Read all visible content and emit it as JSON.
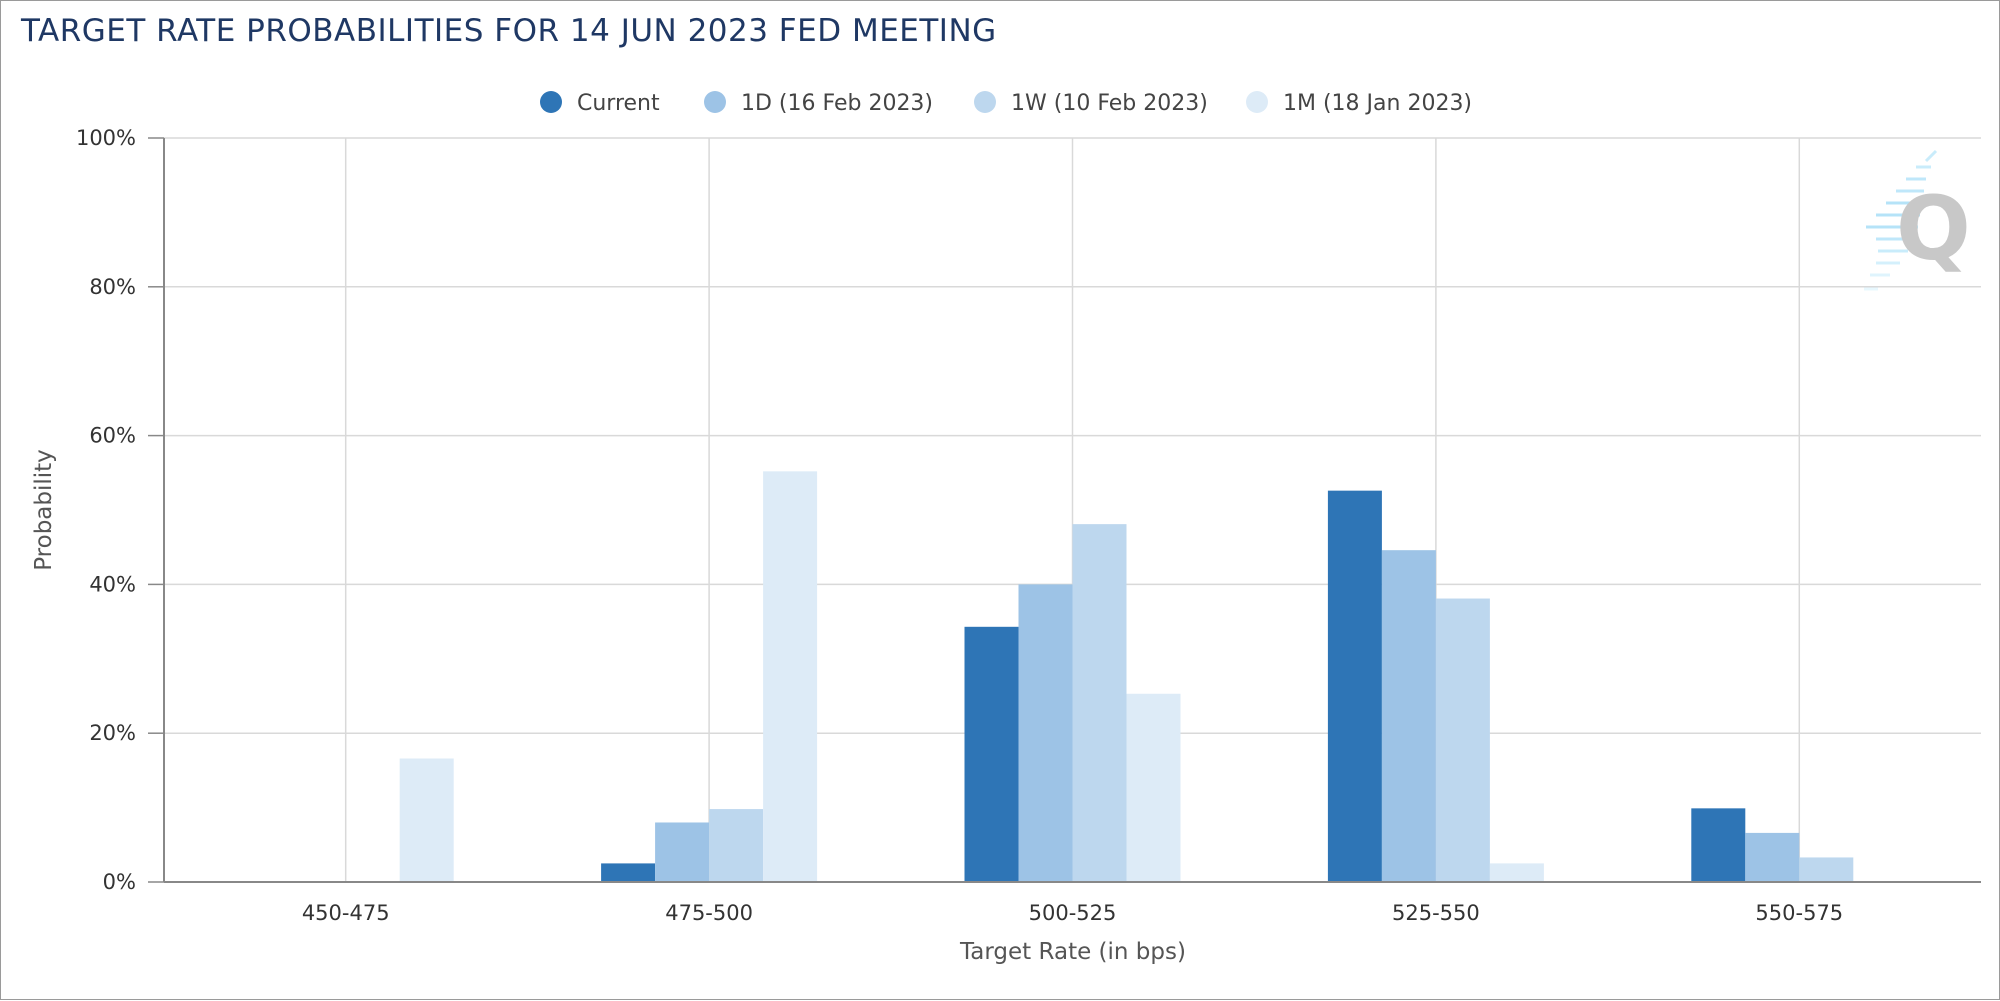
{
  "chart_data": {
    "type": "bar",
    "title": "TARGET RATE PROBABILITIES FOR 14 JUN 2023 FED MEETING",
    "xlabel": "Target Rate (in bps)",
    "ylabel": "Probability",
    "categories": [
      "450-475",
      "475-500",
      "500-525",
      "525-550",
      "550-575"
    ],
    "ylim": [
      0,
      100
    ],
    "yticks": [
      "0%",
      "20%",
      "40%",
      "60%",
      "80%",
      "100%"
    ],
    "grid": true,
    "legend_position": "top-center",
    "series": [
      {
        "name": "Current",
        "color": "#2e75b6",
        "values": [
          0,
          2.5,
          34.3,
          52.6,
          9.9
        ]
      },
      {
        "name": "1D (16 Feb 2023)",
        "color": "#9dc3e6",
        "values": [
          0,
          8.0,
          40.0,
          44.6,
          6.6
        ]
      },
      {
        "name": "1W (10 Feb 2023)",
        "color": "#bdd7ee",
        "values": [
          0,
          9.8,
          48.1,
          38.1,
          3.3
        ]
      },
      {
        "name": "1M (18 Jan 2023)",
        "color": "#ddebf7",
        "values": [
          16.6,
          55.2,
          25.3,
          2.5,
          0
        ]
      }
    ],
    "watermark_icon": "cme-fedwatch-q-logo-icon"
  }
}
